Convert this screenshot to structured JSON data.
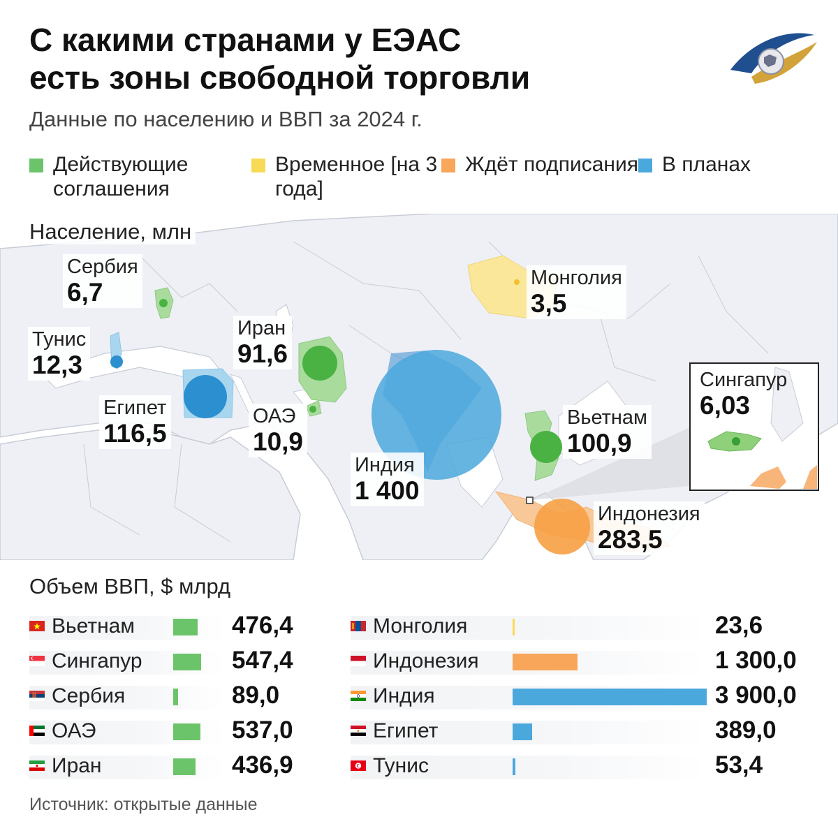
{
  "header": {
    "title_line1": "С какими странами у ЕЭАС",
    "title_line2": "есть зоны свободной торговли",
    "subtitle": "Данные по населению и ВВП за 2024 г."
  },
  "legend": [
    {
      "label": "Действующие соглашения",
      "color": "#6cc46a"
    },
    {
      "label": "Временное [на 3 года]",
      "color": "#f7db57"
    },
    {
      "label": "Ждёт подписания",
      "color": "#f7a65a"
    },
    {
      "label": "В планах",
      "color": "#4ba8dc"
    }
  ],
  "population": {
    "title": "Население, млн",
    "countries": [
      {
        "name": "Сербия",
        "value": "6,7",
        "status": "active"
      },
      {
        "name": "Тунис",
        "value": "12,3",
        "status": "planned"
      },
      {
        "name": "Египет",
        "value": "116,5",
        "status": "planned"
      },
      {
        "name": "Иран",
        "value": "91,6",
        "status": "active"
      },
      {
        "name": "ОАЭ",
        "value": "10,9",
        "status": "active"
      },
      {
        "name": "Индия",
        "value": "1 400",
        "status": "planned"
      },
      {
        "name": "Монголия",
        "value": "3,5",
        "status": "temporary"
      },
      {
        "name": "Вьетнам",
        "value": "100,9",
        "status": "active"
      },
      {
        "name": "Сингапур",
        "value": "6,03",
        "status": "active"
      },
      {
        "name": "Индонезия",
        "value": "283,5",
        "status": "pending"
      }
    ]
  },
  "gdp": {
    "title": "Объем ВВП, $ млрд",
    "max": 3900,
    "left": [
      {
        "name": "Вьетнам",
        "value": "476,4",
        "num": 476.4,
        "color": "#6cc46a"
      },
      {
        "name": "Сингапур",
        "value": "547,4",
        "num": 547.4,
        "color": "#6cc46a"
      },
      {
        "name": "Сербия",
        "value": "89,0",
        "num": 89.0,
        "color": "#6cc46a"
      },
      {
        "name": "ОАЭ",
        "value": "537,0",
        "num": 537.0,
        "color": "#6cc46a"
      },
      {
        "name": "Иран",
        "value": "436,9",
        "num": 436.9,
        "color": "#6cc46a"
      }
    ],
    "right": [
      {
        "name": "Монголия",
        "value": "23,6",
        "num": 23.6,
        "color": "#f7db57"
      },
      {
        "name": "Индонезия",
        "value": "1 300,0",
        "num": 1300.0,
        "color": "#f7a65a"
      },
      {
        "name": "Индия",
        "value": "3 900,0",
        "num": 3900.0,
        "color": "#4ba8dc"
      },
      {
        "name": "Египет",
        "value": "389,0",
        "num": 389.0,
        "color": "#4ba8dc"
      },
      {
        "name": "Тунис",
        "value": "53,4",
        "num": 53.4,
        "color": "#4ba8dc"
      }
    ]
  },
  "source": "Источник: открытые данные",
  "icons": {
    "logo": "eaeu-emblem-icon"
  }
}
